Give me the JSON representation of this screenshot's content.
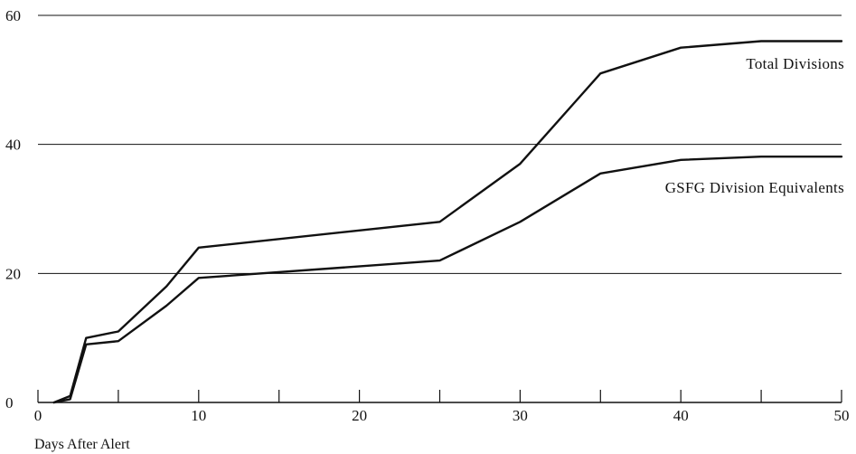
{
  "chart_data": {
    "type": "line",
    "xlabel": "Days After Alert",
    "ylabel": "",
    "xlim": [
      0,
      50
    ],
    "ylim": [
      0,
      60
    ],
    "x_ticks": [
      0,
      10,
      20,
      30,
      40,
      50
    ],
    "x_minor_ticks": [
      5,
      15,
      25,
      35,
      45
    ],
    "y_ticks": [
      0,
      20,
      40,
      60
    ],
    "grid": "horizontal",
    "line_color": "#111111",
    "series": [
      {
        "name": "Total Divisions",
        "x": [
          1,
          2,
          3,
          5,
          8,
          10,
          25,
          30,
          35,
          40,
          45,
          50
        ],
        "y": [
          0,
          1,
          10,
          11,
          18,
          24,
          28,
          37,
          51,
          55,
          56,
          56
        ]
      },
      {
        "name": "GSFG Division Equivalents",
        "x": [
          1,
          2,
          3,
          5,
          8,
          10,
          25,
          30,
          35,
          40,
          45,
          50
        ],
        "y": [
          0,
          0.5,
          9,
          9.5,
          15,
          19.3,
          22,
          28,
          35.5,
          37.6,
          38.1,
          38.1
        ]
      }
    ]
  }
}
